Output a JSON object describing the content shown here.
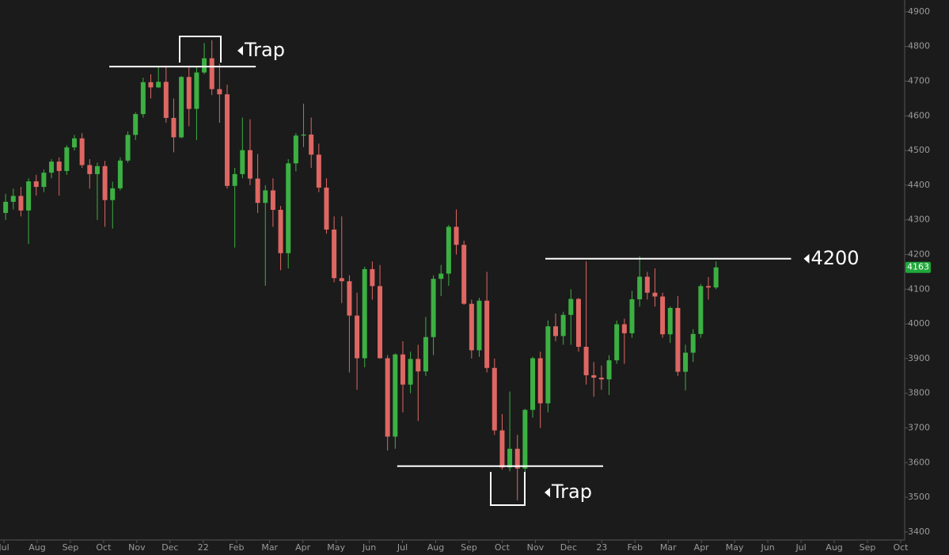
{
  "chart_data": {
    "type": "candlestick",
    "x": [
      0.05,
      0.28,
      0.51,
      0.74,
      0.97,
      1.2,
      1.43,
      1.66,
      1.89,
      2.12,
      2.35,
      2.58,
      2.81,
      3.04,
      3.27,
      3.5,
      3.73,
      3.96,
      4.19,
      4.42,
      4.65,
      4.88,
      5.11,
      5.34,
      5.57,
      5.8,
      6.03,
      6.26,
      6.49,
      6.72,
      6.95,
      7.18,
      7.41,
      7.64,
      7.87,
      8.1,
      8.33,
      8.56,
      8.79,
      9.02,
      9.25,
      9.48,
      9.71,
      9.94,
      10.17,
      10.4,
      10.63,
      10.86,
      11.09,
      11.32,
      11.55,
      11.78,
      12.01,
      12.24,
      12.47,
      12.7,
      12.93,
      13.16,
      13.39,
      13.62,
      13.85,
      14.08,
      14.31,
      14.54,
      14.77,
      15,
      15.23,
      15.46,
      15.69,
      15.92,
      16.15,
      16.38,
      16.61,
      16.84,
      17.07,
      17.3,
      17.53,
      17.76,
      17.99,
      18.22,
      18.45,
      18.68,
      18.91,
      19.14,
      19.37,
      19.6,
      19.83,
      20.06,
      20.29,
      20.52,
      20.75,
      20.98,
      21.21,
      21.44
    ],
    "open": [
      4320,
      4352,
      4369,
      4327,
      4411,
      4395,
      4436,
      4468,
      4441,
      4509,
      4535,
      4458,
      4432,
      4455,
      4357,
      4391,
      4471,
      4545,
      4605,
      4697,
      4682,
      4698,
      4594,
      4538,
      4712,
      4620,
      4725,
      4766,
      4677,
      4662,
      4398,
      4432,
      4501,
      4419,
      4349,
      4385,
      4329,
      4204,
      4463,
      4543,
      4546,
      4488,
      4393,
      4272,
      4132,
      4123,
      4024,
      3901,
      4158,
      4109,
      3901,
      3675,
      3912,
      3825,
      3899,
      3863,
      3962,
      4130,
      4145,
      4280,
      4228,
      4058,
      3924,
      4067,
      3873,
      3693,
      3586,
      3640,
      3583,
      3752,
      3901,
      3771,
      3993,
      3965,
      4026,
      4072,
      3934,
      3852,
      3845,
      3840,
      3895,
      3999,
      3973,
      4071,
      4136,
      4090,
      4079,
      3970,
      4046,
      3862,
      3917,
      3971,
      4109,
      4105
    ],
    "high": [
      4375,
      4390,
      4395,
      4420,
      4430,
      4445,
      4475,
      4480,
      4515,
      4545,
      4550,
      4475,
      4465,
      4470,
      4410,
      4480,
      4555,
      4610,
      4710,
      4720,
      4740,
      4745,
      4650,
      4715,
      4745,
      4740,
      4810,
      4818,
      4750,
      4690,
      4450,
      4595,
      4590,
      4490,
      4400,
      4420,
      4340,
      4475,
      4550,
      4635,
      4595,
      4520,
      4420,
      4310,
      4310,
      4140,
      4090,
      4165,
      4180,
      4170,
      3910,
      3915,
      3950,
      3920,
      3940,
      4020,
      4140,
      4170,
      4285,
      4330,
      4240,
      4070,
      4075,
      4150,
      3900,
      3740,
      3805,
      3680,
      3755,
      3905,
      3920,
      4010,
      4030,
      4035,
      4100,
      4075,
      4180,
      3890,
      3880,
      3910,
      4010,
      4015,
      4095,
      4195,
      4150,
      4160,
      4090,
      4050,
      4080,
      3940,
      3985,
      4115,
      4135,
      4180
    ],
    "low": [
      4300,
      4330,
      4310,
      4230,
      4370,
      4380,
      4420,
      4370,
      4430,
      4500,
      4450,
      4390,
      4300,
      4280,
      4275,
      4385,
      4465,
      4530,
      4595,
      4650,
      4680,
      4580,
      4495,
      4535,
      4570,
      4530,
      4720,
      4660,
      4580,
      4390,
      4220,
      4420,
      4400,
      4320,
      4110,
      4280,
      4155,
      4160,
      4440,
      4510,
      4450,
      4380,
      4260,
      4120,
      4060,
      3860,
      3810,
      3875,
      4070,
      3900,
      3635,
      3640,
      3745,
      3800,
      3720,
      3850,
      3910,
      4080,
      4110,
      4200,
      4055,
      3900,
      3905,
      3860,
      3680,
      3580,
      3575,
      3491,
      3570,
      3730,
      3700,
      3745,
      3950,
      3940,
      3940,
      3920,
      3825,
      3790,
      3810,
      3795,
      3885,
      3885,
      3960,
      4050,
      4070,
      4050,
      3960,
      3945,
      3850,
      3808,
      3890,
      3960,
      4070,
      4100
    ],
    "close": [
      4352,
      4369,
      4327,
      4411,
      4395,
      4436,
      4468,
      4441,
      4509,
      4535,
      4458,
      4432,
      4455,
      4357,
      4391,
      4471,
      4545,
      4605,
      4697,
      4682,
      4698,
      4594,
      4538,
      4712,
      4620,
      4725,
      4766,
      4677,
      4662,
      4398,
      4432,
      4501,
      4419,
      4349,
      4385,
      4329,
      4204,
      4463,
      4543,
      4546,
      4488,
      4393,
      4272,
      4132,
      4123,
      4024,
      3901,
      4158,
      4109,
      3901,
      3675,
      3912,
      3825,
      3899,
      3863,
      3962,
      4130,
      4145,
      4280,
      4228,
      4058,
      3924,
      4067,
      3873,
      3693,
      3586,
      3640,
      3583,
      3752,
      3901,
      3771,
      3993,
      3965,
      4026,
      4072,
      3934,
      3852,
      3845,
      3840,
      3895,
      3999,
      3973,
      4071,
      4136,
      4090,
      4079,
      3970,
      4046,
      3862,
      3917,
      3971,
      4109,
      4105,
      4163
    ],
    "up_color": "#3cb043",
    "down_color": "#de6763",
    "xlim": [
      -0.12,
      27.12
    ],
    "ylim": [
      3377,
      4934
    ],
    "xticks": [
      {
        "value": 0,
        "label": "Jul"
      },
      {
        "value": 1,
        "label": "Aug"
      },
      {
        "value": 2,
        "label": "Sep"
      },
      {
        "value": 3,
        "label": "Oct"
      },
      {
        "value": 4,
        "label": "Nov"
      },
      {
        "value": 5,
        "label": "Dec"
      },
      {
        "value": 6,
        "label": "22"
      },
      {
        "value": 7,
        "label": "Feb"
      },
      {
        "value": 8,
        "label": "Mar"
      },
      {
        "value": 9,
        "label": "Apr"
      },
      {
        "value": 10,
        "label": "May"
      },
      {
        "value": 11,
        "label": "Jun"
      },
      {
        "value": 12,
        "label": "Jul"
      },
      {
        "value": 13,
        "label": "Aug"
      },
      {
        "value": 14,
        "label": "Sep"
      },
      {
        "value": 15,
        "label": "Oct"
      },
      {
        "value": 16,
        "label": "Nov"
      },
      {
        "value": 17,
        "label": "Dec"
      },
      {
        "value": 18,
        "label": "23"
      },
      {
        "value": 19,
        "label": "Feb"
      },
      {
        "value": 20,
        "label": "Mar"
      },
      {
        "value": 21,
        "label": "Apr"
      },
      {
        "value": 22,
        "label": "May"
      },
      {
        "value": 23,
        "label": "Jun"
      },
      {
        "value": 24,
        "label": "Jul"
      },
      {
        "value": 25,
        "label": "Aug"
      },
      {
        "value": 26,
        "label": "Sep"
      },
      {
        "value": 27,
        "label": "Oct"
      }
    ],
    "yticks": [
      3400,
      3500,
      3600,
      3700,
      3800,
      3900,
      4000,
      4100,
      4200,
      4300,
      4400,
      4500,
      4600,
      4700,
      4800,
      4900
    ],
    "annotations": [
      {
        "text": "Trap",
        "level": 4742,
        "x": [
          3.17,
          7.58
        ]
      },
      {
        "text": "Trap",
        "level": 3590,
        "x": [
          11.84,
          18.04
        ]
      },
      {
        "text": "4200",
        "level": 4188,
        "x": [
          16.3,
          23.7
        ]
      }
    ]
  }
}
